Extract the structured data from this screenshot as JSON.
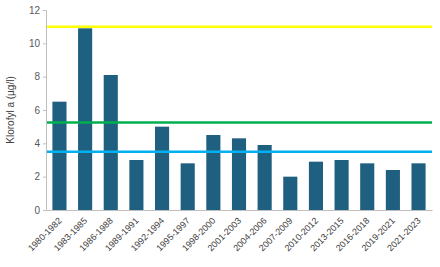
{
  "chart_data": {
    "type": "bar",
    "y_label": "Klorofyl a (µg/l)",
    "categories": [
      "1980-1982",
      "1983-1985",
      "1986-1988",
      "1989-1991",
      "1992-1994",
      "1995-1997",
      "1998-2000",
      "2001-2003",
      "2004-2006",
      "2007-2009",
      "2010-2012",
      "2013-2015",
      "2016-2018",
      "2019-2021",
      "2021-2023"
    ],
    "values": [
      6.5,
      10.9,
      8.1,
      3.0,
      5.0,
      2.8,
      4.5,
      4.3,
      3.9,
      2.0,
      2.9,
      3.0,
      2.8,
      2.4,
      2.8
    ],
    "color": "#1f5f7f",
    "reference_lines": [
      {
        "value": 11,
        "color": "#ffff00"
      },
      {
        "value": 5.25,
        "color": "#00b050"
      },
      {
        "value": 3.5,
        "color": "#00b0f0"
      }
    ],
    "ylim": [
      0,
      12
    ],
    "yticks": [
      0,
      2,
      4,
      6,
      8,
      10,
      12
    ],
    "grid": false
  }
}
